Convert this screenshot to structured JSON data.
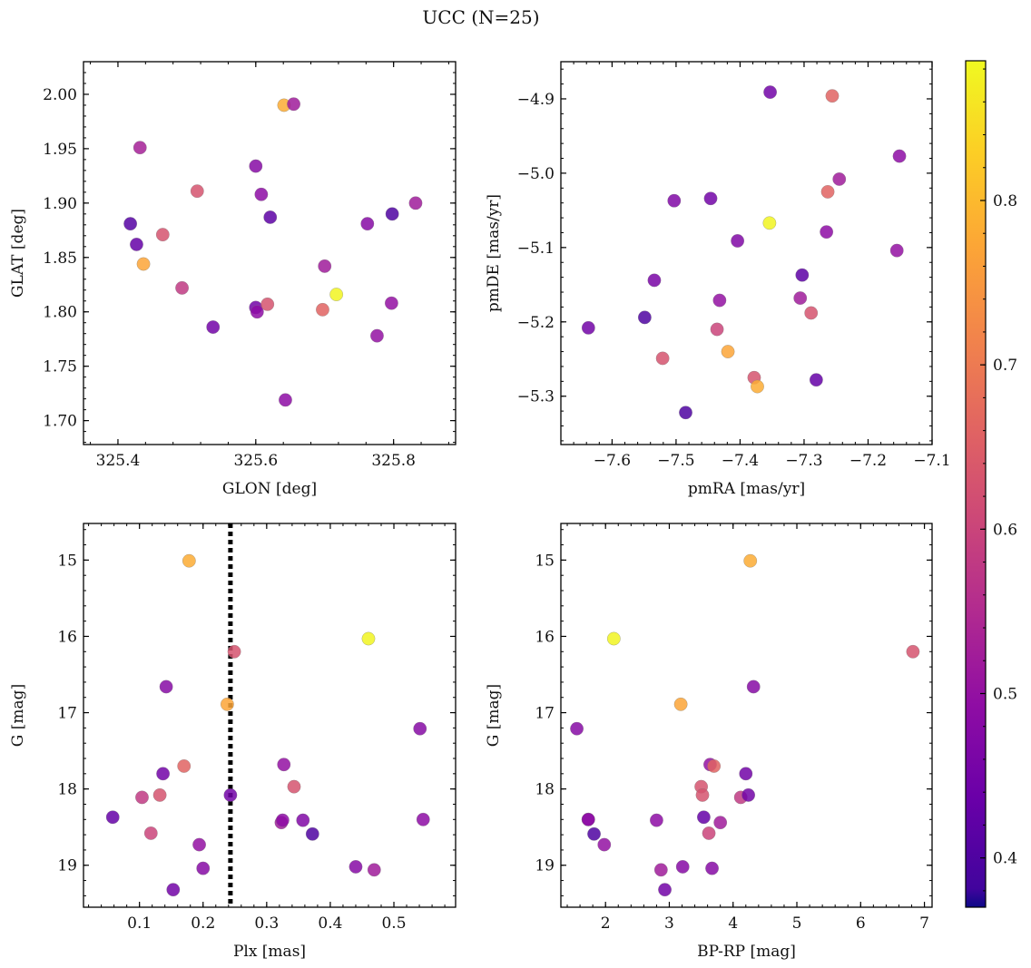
{
  "figure": {
    "title": "UCC (N=25)"
  },
  "chart_data": [
    {
      "type": "scatter",
      "name": "glon-glat",
      "xlabel": "GLON [deg]",
      "ylabel": "GLAT [deg]",
      "xlim": [
        325.35,
        325.89
      ],
      "ylim": [
        1.678,
        2.03
      ],
      "xticks": [
        325.4,
        325.6,
        325.8
      ],
      "xtick_labels": [
        "325.4",
        "325.6",
        "325.8"
      ],
      "yticks": [
        1.7,
        1.75,
        1.8,
        1.85,
        1.9,
        1.95,
        2.0
      ],
      "ytick_labels": [
        "1.70",
        "1.75",
        "1.80",
        "1.85",
        "1.90",
        "1.95",
        "2.00"
      ],
      "x": [
        325.418,
        325.427,
        325.432,
        325.437,
        325.465,
        325.493,
        325.515,
        325.538,
        325.6,
        325.6,
        325.602,
        325.608,
        325.617,
        325.621,
        325.641,
        325.643,
        325.655,
        325.697,
        325.7,
        325.717,
        325.762,
        325.776,
        325.797,
        325.798,
        325.832
      ],
      "y": [
        1.881,
        1.862,
        1.951,
        1.844,
        1.871,
        1.822,
        1.911,
        1.786,
        1.934,
        1.804,
        1.8,
        1.908,
        1.807,
        1.887,
        1.99,
        1.719,
        1.991,
        1.802,
        1.842,
        1.816,
        1.881,
        1.778,
        1.808,
        1.89,
        1.9
      ],
      "color": [
        0.41,
        0.43,
        0.53,
        0.77,
        0.63,
        0.58,
        0.63,
        0.45,
        0.48,
        0.45,
        0.49,
        0.49,
        0.63,
        0.42,
        0.78,
        0.49,
        0.52,
        0.66,
        0.52,
        0.88,
        0.48,
        0.5,
        0.5,
        0.4,
        0.52
      ]
    },
    {
      "type": "scatter",
      "name": "pmra-pmde",
      "xlabel": "pmRA [mas/yr]",
      "ylabel": "pmDE [mas/yr]",
      "xlim": [
        -7.68,
        -7.1
      ],
      "ylim": [
        -5.365,
        -4.85
      ],
      "xticks": [
        -7.6,
        -7.5,
        -7.4,
        -7.3,
        -7.2,
        -7.1
      ],
      "xtick_labels": [
        "−7.6",
        "−7.5",
        "−7.4",
        "−7.3",
        "−7.2",
        "−7.1"
      ],
      "yticks": [
        -5.3,
        -5.2,
        -5.1,
        -5.0,
        -4.9
      ],
      "ytick_labels": [
        "−5.3",
        "−5.2",
        "−5.1",
        "−5.0",
        "−4.9"
      ],
      "x": [
        -7.637,
        -7.549,
        -7.534,
        -7.521,
        -7.503,
        -7.485,
        -7.446,
        -7.436,
        -7.432,
        -7.419,
        -7.404,
        -7.378,
        -7.373,
        -7.354,
        -7.353,
        -7.306,
        -7.303,
        -7.289,
        -7.281,
        -7.265,
        -7.263,
        -7.256,
        -7.245,
        -7.155,
        -7.151
      ],
      "y": [
        -5.208,
        -5.194,
        -5.144,
        -5.249,
        -5.037,
        -5.322,
        -5.034,
        -5.21,
        -5.171,
        -5.24,
        -5.091,
        -5.275,
        -5.287,
        -5.067,
        -4.891,
        -5.168,
        -5.137,
        -5.188,
        -5.278,
        -5.079,
        -5.025,
        -4.896,
        -5.008,
        -5.104,
        -4.977
      ],
      "color": [
        0.45,
        0.4,
        0.46,
        0.63,
        0.47,
        0.4,
        0.45,
        0.6,
        0.5,
        0.77,
        0.47,
        0.63,
        0.78,
        0.88,
        0.45,
        0.52,
        0.42,
        0.63,
        0.43,
        0.49,
        0.66,
        0.66,
        0.52,
        0.5,
        0.49
      ]
    },
    {
      "type": "scatter",
      "name": "plx-g",
      "xlabel": "Plx [mas]",
      "ylabel": "G [mag]",
      "xlim": [
        0.012,
        0.597
      ],
      "ylim": [
        19.55,
        14.52
      ],
      "inverted_y": true,
      "xticks": [
        0.1,
        0.2,
        0.3,
        0.4,
        0.5
      ],
      "xtick_labels": [
        "0.1",
        "0.2",
        "0.3",
        "0.4",
        "0.5"
      ],
      "yticks": [
        15,
        16,
        17,
        18,
        19
      ],
      "ytick_labels": [
        "15",
        "16",
        "17",
        "18",
        "19"
      ],
      "vline": {
        "x": 0.243,
        "style": "dotted",
        "color": "#000000"
      },
      "x": [
        0.058,
        0.104,
        0.118,
        0.132,
        0.137,
        0.142,
        0.153,
        0.17,
        0.178,
        0.194,
        0.2,
        0.238,
        0.243,
        0.249,
        0.323,
        0.325,
        0.327,
        0.343,
        0.357,
        0.372,
        0.44,
        0.46,
        0.469,
        0.541,
        0.546
      ],
      "y": [
        18.37,
        18.11,
        18.58,
        18.08,
        17.8,
        16.66,
        19.32,
        17.7,
        15.01,
        18.73,
        19.04,
        16.89,
        18.08,
        16.2,
        18.44,
        18.41,
        17.68,
        17.97,
        18.41,
        18.59,
        19.02,
        16.03,
        19.06,
        17.21,
        18.4
      ],
      "color": [
        0.43,
        0.58,
        0.6,
        0.63,
        0.45,
        0.48,
        0.45,
        0.66,
        0.78,
        0.5,
        0.48,
        0.77,
        0.45,
        0.63,
        0.52,
        0.49,
        0.5,
        0.63,
        0.47,
        0.4,
        0.48,
        0.88,
        0.52,
        0.48,
        0.49
      ]
    },
    {
      "type": "scatter",
      "name": "bprp-g",
      "xlabel": "BP-RP [mag]",
      "ylabel": "G [mag]",
      "xlim": [
        1.3,
        7.12
      ],
      "ylim": [
        19.55,
        14.52
      ],
      "inverted_y": true,
      "xticks": [
        2,
        3,
        4,
        5,
        6,
        7
      ],
      "xtick_labels": [
        "2",
        "3",
        "4",
        "5",
        "6",
        "7"
      ],
      "yticks": [
        15,
        16,
        17,
        18,
        19
      ],
      "ytick_labels": [
        "15",
        "16",
        "17",
        "18",
        "19"
      ],
      "x": [
        1.55,
        1.73,
        1.82,
        1.98,
        2.13,
        2.8,
        2.87,
        2.93,
        3.18,
        3.21,
        3.5,
        3.52,
        3.54,
        3.62,
        3.64,
        3.67,
        3.7,
        3.8,
        4.12,
        4.2,
        4.24,
        4.27,
        4.32,
        6.82,
        1.73
      ],
      "y": [
        17.21,
        18.4,
        18.59,
        18.73,
        16.03,
        18.41,
        19.06,
        19.32,
        16.89,
        19.02,
        17.97,
        18.08,
        18.37,
        18.58,
        17.68,
        19.04,
        17.7,
        18.44,
        18.11,
        17.8,
        18.08,
        15.01,
        16.66,
        16.2,
        18.4
      ],
      "color": [
        0.48,
        0.49,
        0.4,
        0.5,
        0.88,
        0.49,
        0.52,
        0.45,
        0.77,
        0.48,
        0.63,
        0.63,
        0.43,
        0.6,
        0.5,
        0.48,
        0.66,
        0.52,
        0.58,
        0.45,
        0.45,
        0.78,
        0.48,
        0.63,
        0.49
      ]
    }
  ],
  "colorbar": {
    "cmap": "plasma",
    "range": [
      0.37,
      0.885
    ],
    "ticks": [
      0.4,
      0.5,
      0.6,
      0.7,
      0.8
    ],
    "tick_labels": [
      "0.4",
      "0.5",
      "0.6",
      "0.7",
      "0.8"
    ]
  }
}
